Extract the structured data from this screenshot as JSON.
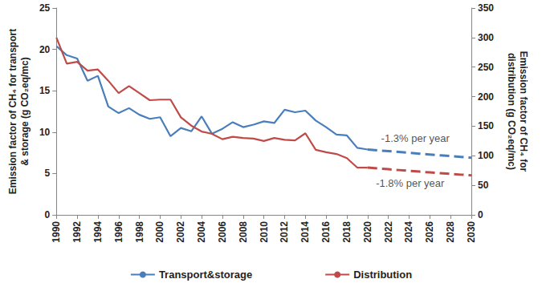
{
  "chart_data": {
    "type": "line",
    "x_label": null,
    "y_label": "Emission factor of CH₄ for transport\n& storage (g CO₂eq/mc)",
    "y2_label": "Emission factor of CH₄ for\ndistribution (g CO₂eq/mc)",
    "x": [
      1990,
      1991,
      1992,
      1993,
      1994,
      1995,
      1996,
      1997,
      1998,
      1999,
      2000,
      2001,
      2002,
      2003,
      2004,
      2005,
      2006,
      2007,
      2008,
      2009,
      2010,
      2011,
      2012,
      2013,
      2014,
      2015,
      2016,
      2017,
      2018,
      2019,
      2020,
      2021,
      2022,
      2023,
      2024,
      2025,
      2026,
      2027,
      2028,
      2029,
      2030
    ],
    "xlim": [
      1990,
      2030
    ],
    "xticks": [
      1990,
      1992,
      1994,
      1996,
      1998,
      2000,
      2002,
      2004,
      2006,
      2008,
      2010,
      2012,
      2014,
      2016,
      2018,
      2020,
      2022,
      2024,
      2026,
      2028,
      2030
    ],
    "ylim": [
      0,
      25
    ],
    "yticks": [
      0,
      5,
      10,
      15,
      20,
      25
    ],
    "y2lim": [
      0,
      350
    ],
    "y2ticks": [
      0,
      50,
      100,
      150,
      200,
      250,
      300,
      350
    ],
    "grid": false,
    "legend": "bottom",
    "series": [
      {
        "name": "Transport&storage",
        "color": "#4a7ebb",
        "axis": "y",
        "line_style": "solid",
        "values": [
          20.4,
          19.3,
          18.9,
          16.2,
          16.8,
          13.1,
          12.3,
          12.9,
          12.1,
          11.6,
          11.8,
          9.5,
          10.5,
          10.1,
          11.9,
          9.8,
          10.4,
          11.2,
          10.6,
          10.9,
          11.3,
          11.1,
          12.7,
          12.4,
          12.6,
          11.4,
          10.6,
          9.7,
          9.6,
          8.1,
          7.9,
          null,
          null,
          null,
          null,
          null,
          null,
          null,
          null,
          null,
          null
        ]
      },
      {
        "name": "Distribution",
        "color": "#be4b48",
        "axis": "y2",
        "line_style": "solid",
        "values": [
          300,
          256,
          259,
          244,
          246,
          227,
          206,
          218,
          206,
          194,
          195,
          195,
          165,
          151,
          141,
          137,
          128,
          132,
          130,
          129,
          125,
          130,
          127,
          126,
          138,
          110,
          106,
          103,
          96,
          80,
          80,
          null,
          null,
          null,
          null,
          null,
          null,
          null,
          null,
          null,
          null
        ]
      },
      {
        "color": "#4a7ebb",
        "axis": "y",
        "line_style": "dashed",
        "values": [
          null,
          null,
          null,
          null,
          null,
          null,
          null,
          null,
          null,
          null,
          null,
          null,
          null,
          null,
          null,
          null,
          null,
          null,
          null,
          null,
          null,
          null,
          null,
          null,
          null,
          null,
          null,
          null,
          null,
          null,
          7.9,
          7.8,
          7.7,
          7.6,
          7.5,
          7.4,
          7.3,
          7.2,
          7.1,
          7.0,
          6.9
        ]
      },
      {
        "color": "#be4b48",
        "axis": "y2",
        "line_style": "dashed",
        "values": [
          null,
          null,
          null,
          null,
          null,
          null,
          null,
          null,
          null,
          null,
          null,
          null,
          null,
          null,
          null,
          null,
          null,
          null,
          null,
          null,
          null,
          null,
          null,
          null,
          null,
          null,
          null,
          null,
          null,
          null,
          80,
          78.6,
          77.2,
          75.8,
          74.4,
          73.1,
          71.8,
          70.5,
          69.2,
          68,
          66.8
        ]
      }
    ],
    "annotations": [
      {
        "text": "-1.3% per year",
        "x": 2021.3,
        "y": 9.3,
        "axis": "y",
        "color": "#1f1f1f"
      },
      {
        "text": "-1.8% per year",
        "x": 2020.8,
        "y": 3.8,
        "axis": "y",
        "color": "#1f1f1f"
      }
    ]
  }
}
